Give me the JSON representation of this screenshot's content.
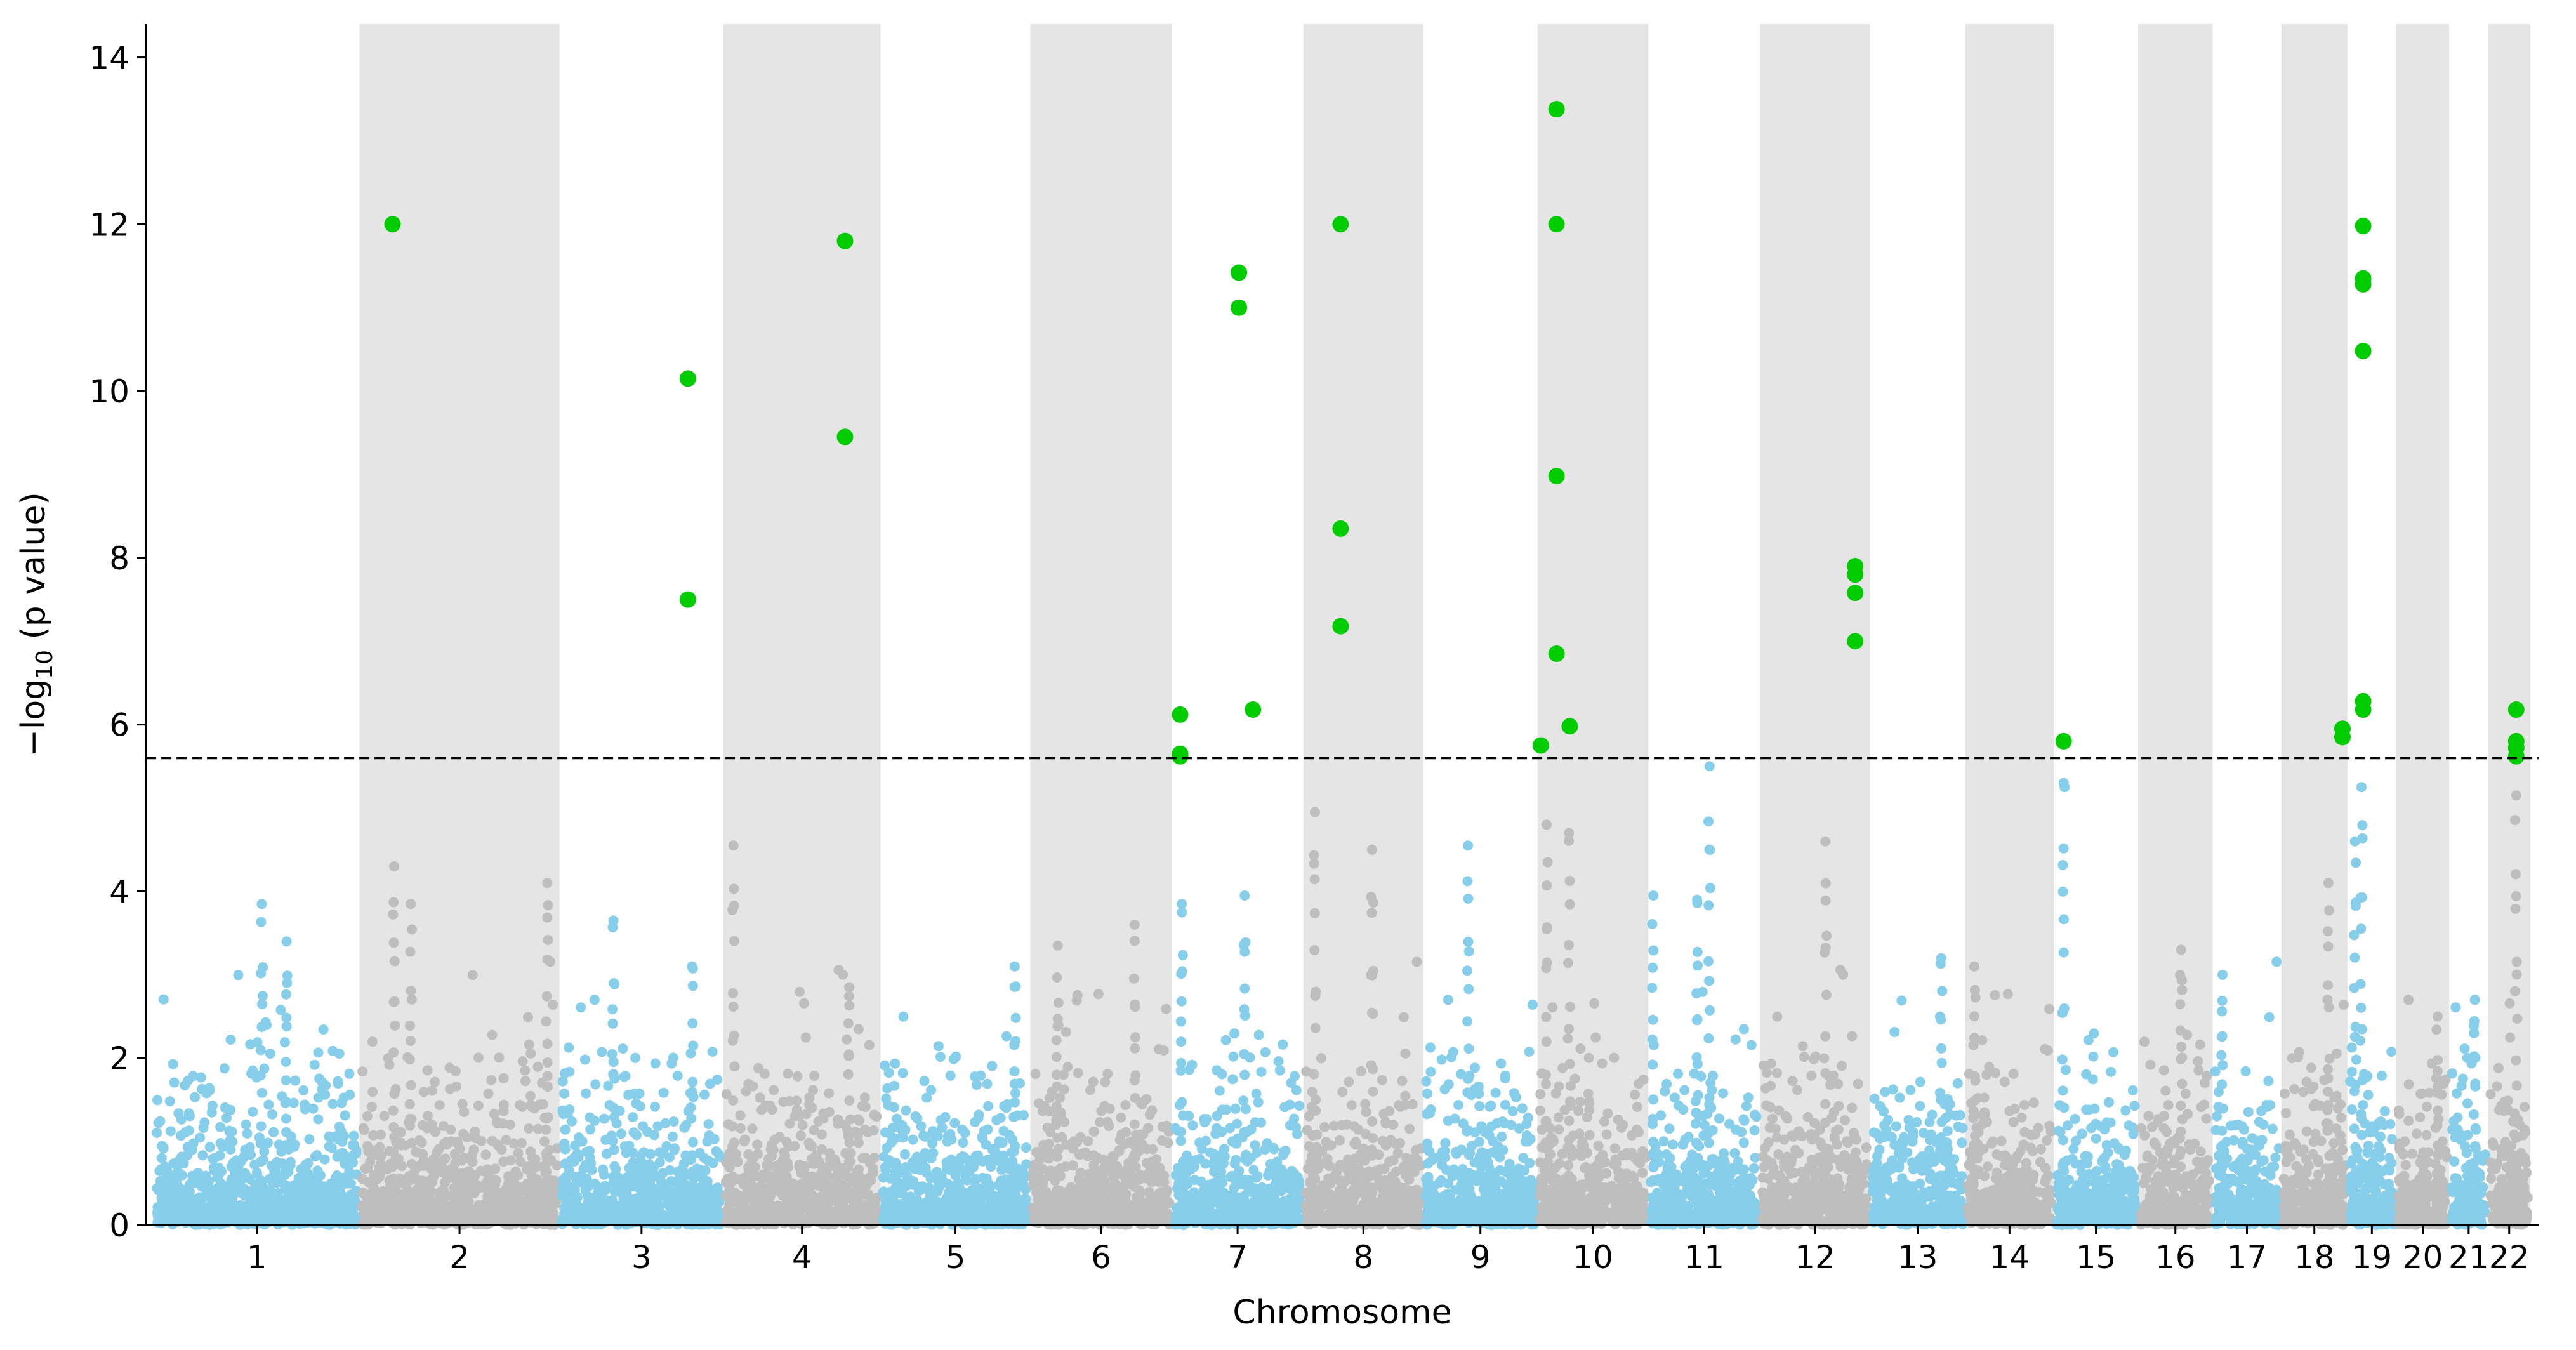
{
  "chart_data": {
    "type": "scatter",
    "subtype": "manhattan",
    "title": "",
    "xlabel": "Chromosome",
    "ylabel": "−log10 (p value)",
    "ylabel_parts": {
      "prefix": "−log",
      "subscript": "10",
      "suffix": " (p value)"
    },
    "ylim": [
      0,
      14.4
    ],
    "yticks": [
      0,
      2,
      4,
      6,
      8,
      10,
      12,
      14
    ],
    "threshold": 5.6,
    "colors": {
      "odd_chromosome": "#87ceeb",
      "even_chromosome": "#bebebe",
      "significant": "#00cc00",
      "band": "#e5e5e5",
      "threshold_line": "#000000"
    },
    "chromosomes": [
      {
        "label": "1",
        "start": 0,
        "end": 248
      },
      {
        "label": "2",
        "start": 248,
        "end": 490
      },
      {
        "label": "3",
        "start": 490,
        "end": 688
      },
      {
        "label": "4",
        "start": 688,
        "end": 878
      },
      {
        "label": "5",
        "start": 878,
        "end": 1059
      },
      {
        "label": "6",
        "start": 1059,
        "end": 1230
      },
      {
        "label": "7",
        "start": 1230,
        "end": 1389
      },
      {
        "label": "8",
        "start": 1389,
        "end": 1534
      },
      {
        "label": "9",
        "start": 1534,
        "end": 1672
      },
      {
        "label": "10",
        "start": 1672,
        "end": 1806
      },
      {
        "label": "11",
        "start": 1806,
        "end": 1941
      },
      {
        "label": "12",
        "start": 1941,
        "end": 2074
      },
      {
        "label": "13",
        "start": 2074,
        "end": 2189
      },
      {
        "label": "14",
        "start": 2189,
        "end": 2296
      },
      {
        "label": "15",
        "start": 2296,
        "end": 2398
      },
      {
        "label": "16",
        "start": 2398,
        "end": 2488
      },
      {
        "label": "17",
        "start": 2488,
        "end": 2571
      },
      {
        "label": "18",
        "start": 2571,
        "end": 2651
      },
      {
        "label": "19",
        "start": 2651,
        "end": 2710
      },
      {
        "label": "20",
        "start": 2710,
        "end": 2774
      },
      {
        "label": "21",
        "start": 2774,
        "end": 2821
      },
      {
        "label": "22",
        "start": 2821,
        "end": 2872
      }
    ],
    "x_range": [
      -10,
      2882
    ],
    "significant_points": [
      {
        "chr": "2",
        "x": 288,
        "y": 12.0
      },
      {
        "chr": "3",
        "x": 645,
        "y": 10.15
      },
      {
        "chr": "3",
        "x": 645,
        "y": 7.5
      },
      {
        "chr": "4",
        "x": 835,
        "y": 11.8
      },
      {
        "chr": "4",
        "x": 835,
        "y": 9.45
      },
      {
        "chr": "7",
        "x": 1240,
        "y": 6.12
      },
      {
        "chr": "7",
        "x": 1240,
        "y": 5.65
      },
      {
        "chr": "7",
        "x": 1240,
        "y": 5.62
      },
      {
        "chr": "7",
        "x": 1311,
        "y": 11.42
      },
      {
        "chr": "7",
        "x": 1311,
        "y": 11.0
      },
      {
        "chr": "7",
        "x": 1328,
        "y": 6.18
      },
      {
        "chr": "8",
        "x": 1434,
        "y": 12.0
      },
      {
        "chr": "8",
        "x": 1434,
        "y": 8.35
      },
      {
        "chr": "8",
        "x": 1434,
        "y": 7.18
      },
      {
        "chr": "10",
        "x": 1695,
        "y": 13.38
      },
      {
        "chr": "10",
        "x": 1695,
        "y": 12.0
      },
      {
        "chr": "10",
        "x": 1695,
        "y": 8.98
      },
      {
        "chr": "10",
        "x": 1695,
        "y": 6.85
      },
      {
        "chr": "10",
        "x": 1676,
        "y": 5.75
      },
      {
        "chr": "10",
        "x": 1711,
        "y": 5.98
      },
      {
        "chr": "12",
        "x": 2056,
        "y": 7.9
      },
      {
        "chr": "12",
        "x": 2056,
        "y": 7.8
      },
      {
        "chr": "12",
        "x": 2056,
        "y": 7.58
      },
      {
        "chr": "12",
        "x": 2056,
        "y": 7.0
      },
      {
        "chr": "15",
        "x": 2308,
        "y": 5.8
      },
      {
        "chr": "19",
        "x": 2670,
        "y": 11.98
      },
      {
        "chr": "19",
        "x": 2670,
        "y": 11.35
      },
      {
        "chr": "19",
        "x": 2670,
        "y": 11.28
      },
      {
        "chr": "19",
        "x": 2670,
        "y": 10.48
      },
      {
        "chr": "19",
        "x": 2670,
        "y": 6.28
      },
      {
        "chr": "19",
        "x": 2670,
        "y": 6.18
      },
      {
        "chr": "19",
        "x": 2645,
        "y": 5.95
      },
      {
        "chr": "19",
        "x": 2645,
        "y": 5.85
      },
      {
        "chr": "22",
        "x": 2855,
        "y": 6.18
      },
      {
        "chr": "22",
        "x": 2855,
        "y": 5.8
      },
      {
        "chr": "22",
        "x": 2855,
        "y": 5.72
      },
      {
        "chr": "22",
        "x": 2855,
        "y": 5.62
      }
    ],
    "peaks": [
      {
        "chr": "1",
        "x": 130,
        "y": 3.85
      },
      {
        "chr": "1",
        "x": 160,
        "y": 3.4
      },
      {
        "chr": "2",
        "x": 290,
        "y": 4.3
      },
      {
        "chr": "2",
        "x": 310,
        "y": 3.85
      },
      {
        "chr": "2",
        "x": 475,
        "y": 4.1
      },
      {
        "chr": "3",
        "x": 555,
        "y": 3.65
      },
      {
        "chr": "3",
        "x": 650,
        "y": 3.1
      },
      {
        "chr": "4",
        "x": 700,
        "y": 4.55
      },
      {
        "chr": "4",
        "x": 840,
        "y": 2.85
      },
      {
        "chr": "5",
        "x": 1040,
        "y": 3.1
      },
      {
        "chr": "6",
        "x": 1092,
        "y": 3.35
      },
      {
        "chr": "6",
        "x": 1185,
        "y": 3.6
      },
      {
        "chr": "7",
        "x": 1242,
        "y": 3.85
      },
      {
        "chr": "7",
        "x": 1318,
        "y": 3.95
      },
      {
        "chr": "8",
        "x": 1403,
        "y": 4.95
      },
      {
        "chr": "8",
        "x": 1472,
        "y": 4.5
      },
      {
        "chr": "9",
        "x": 1588,
        "y": 4.55
      },
      {
        "chr": "10",
        "x": 1683,
        "y": 4.8
      },
      {
        "chr": "10",
        "x": 1710,
        "y": 4.7
      },
      {
        "chr": "11",
        "x": 1812,
        "y": 3.95
      },
      {
        "chr": "11",
        "x": 1865,
        "y": 3.9
      },
      {
        "chr": "11",
        "x": 1880,
        "y": 5.5
      },
      {
        "chr": "12",
        "x": 2020,
        "y": 4.6
      },
      {
        "chr": "13",
        "x": 2160,
        "y": 3.2
      },
      {
        "chr": "14",
        "x": 2200,
        "y": 3.1
      },
      {
        "chr": "15",
        "x": 2308,
        "y": 5.3
      },
      {
        "chr": "16",
        "x": 2450,
        "y": 3.3
      },
      {
        "chr": "17",
        "x": 2500,
        "y": 3.0
      },
      {
        "chr": "18",
        "x": 2628,
        "y": 4.1
      },
      {
        "chr": "19",
        "x": 2668,
        "y": 5.25
      },
      {
        "chr": "19",
        "x": 2660,
        "y": 4.6
      },
      {
        "chr": "20",
        "x": 2760,
        "y": 2.5
      },
      {
        "chr": "21",
        "x": 2805,
        "y": 2.7
      },
      {
        "chr": "22",
        "x": 2855,
        "y": 5.15
      }
    ]
  }
}
